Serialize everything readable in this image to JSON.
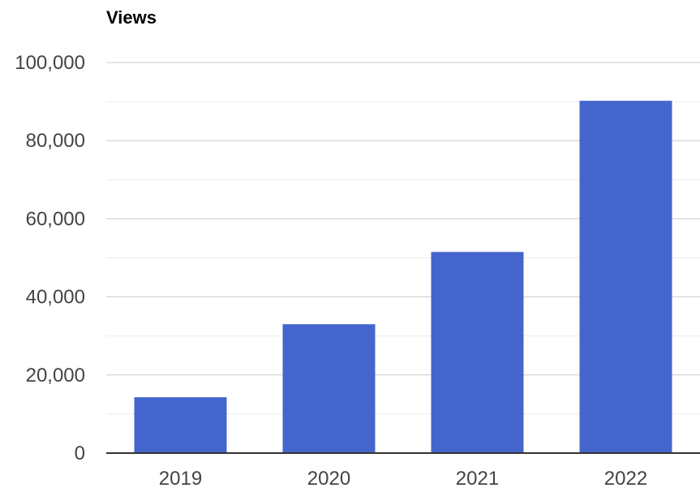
{
  "chart_data": {
    "type": "bar",
    "title": "Views",
    "categories": [
      "2019",
      "2020",
      "2021",
      "2022"
    ],
    "values": [
      14300,
      33000,
      51500,
      90200
    ],
    "ylim": [
      0,
      100000
    ],
    "yticks": [
      0,
      20000,
      40000,
      60000,
      80000,
      100000
    ],
    "ytick_labels": [
      "0",
      "20,000",
      "40,000",
      "60,000",
      "80,000",
      "100,000"
    ],
    "grid": true,
    "legend": "none",
    "colors": {
      "bar": "#4466cc",
      "major_grid": "#cccccc",
      "minor_grid": "#ebebeb",
      "axis": "#333333",
      "tick_text": "#444444",
      "title_text": "#000000"
    }
  }
}
